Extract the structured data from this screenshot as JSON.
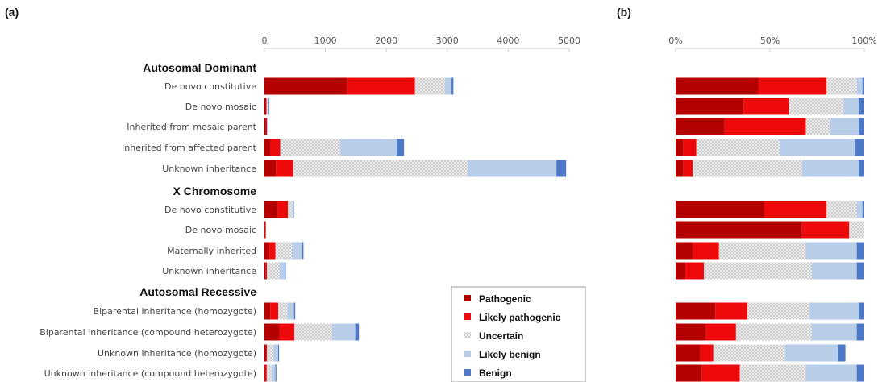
{
  "panels": [
    {
      "label": "(a)"
    },
    {
      "label": "(b)"
    }
  ],
  "legend": {
    "entries": [
      {
        "name": "Pathogenic",
        "color": "#b50000"
      },
      {
        "name": "Likely pathogenic",
        "color": "#ee0a0a"
      },
      {
        "name": "Uncertain",
        "color": "#e8e8e8",
        "pattern": "crosshatch"
      },
      {
        "name": "Likely benign",
        "color": "#b8cde8"
      },
      {
        "name": "Benign",
        "color": "#4e79c7"
      }
    ]
  },
  "chart_data": [
    {
      "type": "bar",
      "orientation": "horizontal",
      "stacked": true,
      "title": "",
      "xlabel": "",
      "ylabel": "",
      "xlim": [
        0,
        5000
      ],
      "xticks": [
        0,
        1000,
        2000,
        3000,
        4000,
        5000
      ],
      "xtick_labels": [
        "0",
        "1000",
        "2000",
        "3000",
        "4000",
        "5000"
      ],
      "x_axis_position": "top",
      "legend_position": "bottom-right",
      "groups": [
        {
          "name": "Autosomal Dominant",
          "categories": [
            "De novo constitutive",
            "De novo mosaic",
            "Inherited from mosaic parent",
            "Inherited from affected parent",
            "Unknown inheritance"
          ]
        },
        {
          "name": "X Chromosome",
          "categories": [
            "De novo constitutive",
            "De novo mosaic",
            "Maternally inherited",
            "Unknown inheritance"
          ]
        },
        {
          "name": "Autosomal Recessive",
          "categories": [
            "Biparental inheritance (homozygote)",
            "Biparental inheritance (compound heterozygote)",
            "Unknown inheritance (homozygote)",
            "Unknown inheritance (compound heterozygote)"
          ]
        }
      ],
      "series": [
        {
          "name": "Pathogenic",
          "values": [
            1360,
            20,
            25,
            100,
            190,
            220,
            12,
            80,
            18,
            95,
            250,
            20,
            8
          ]
        },
        {
          "name": "Likely pathogenic",
          "values": [
            1110,
            15,
            15,
            160,
            280,
            165,
            6,
            100,
            22,
            130,
            240,
            20,
            30
          ]
        },
        {
          "name": "Uncertain",
          "values": [
            490,
            25,
            5,
            980,
            2860,
            70,
            0,
            270,
            200,
            150,
            620,
            110,
            80
          ]
        },
        {
          "name": "Likely benign",
          "values": [
            110,
            10,
            6,
            930,
            1460,
            18,
            0,
            170,
            90,
            110,
            380,
            75,
            62
          ]
        },
        {
          "name": "Benign",
          "values": [
            30,
            5,
            2,
            120,
            160,
            7,
            0,
            20,
            20,
            20,
            60,
            15,
            16
          ]
        }
      ]
    },
    {
      "type": "bar",
      "orientation": "horizontal",
      "stacked": true,
      "normalized": true,
      "title": "",
      "xlabel": "",
      "ylabel": "",
      "xlim": [
        0,
        100
      ],
      "xticks": [
        0,
        50,
        100
      ],
      "xtick_labels": [
        "0%",
        "50%",
        "100%"
      ],
      "x_axis_position": "top",
      "groups": [
        {
          "name": "Autosomal Dominant",
          "categories": [
            "De novo constitutive",
            "De novo mosaic",
            "Inherited from mosaic parent",
            "Inherited from affected parent",
            "Unknown inheritance"
          ]
        },
        {
          "name": "X Chromosome",
          "categories": [
            "De novo constitutive",
            "De novo mosaic",
            "Maternally inherited",
            "Unknown inheritance"
          ]
        },
        {
          "name": "Autosomal Recessive",
          "categories": [
            "Biparental inheritance (homozygote)",
            "Biparental inheritance (compound heterozygote)",
            "Unknown inheritance (homozygote)",
            "Unknown inheritance (compound heterozygote)"
          ]
        }
      ],
      "series": [
        {
          "name": "Pathogenic",
          "values": [
            44,
            36,
            26,
            4,
            4,
            47,
            67,
            9,
            5,
            21,
            16,
            13,
            14
          ]
        },
        {
          "name": "Likely pathogenic",
          "values": [
            36,
            24,
            43,
            7,
            5,
            33,
            25,
            14,
            10,
            17,
            16,
            7,
            20
          ]
        },
        {
          "name": "Uncertain",
          "values": [
            16,
            29,
            13,
            44,
            58,
            16,
            8,
            46,
            57,
            33,
            40,
            38,
            35
          ]
        },
        {
          "name": "Likely benign",
          "values": [
            3,
            8,
            15,
            40,
            30,
            3,
            0,
            27,
            24,
            26,
            24,
            28,
            27
          ]
        },
        {
          "name": "Benign",
          "values": [
            1,
            3,
            3,
            5,
            3,
            1,
            0,
            4,
            4,
            3,
            4,
            4,
            4
          ]
        }
      ]
    }
  ]
}
